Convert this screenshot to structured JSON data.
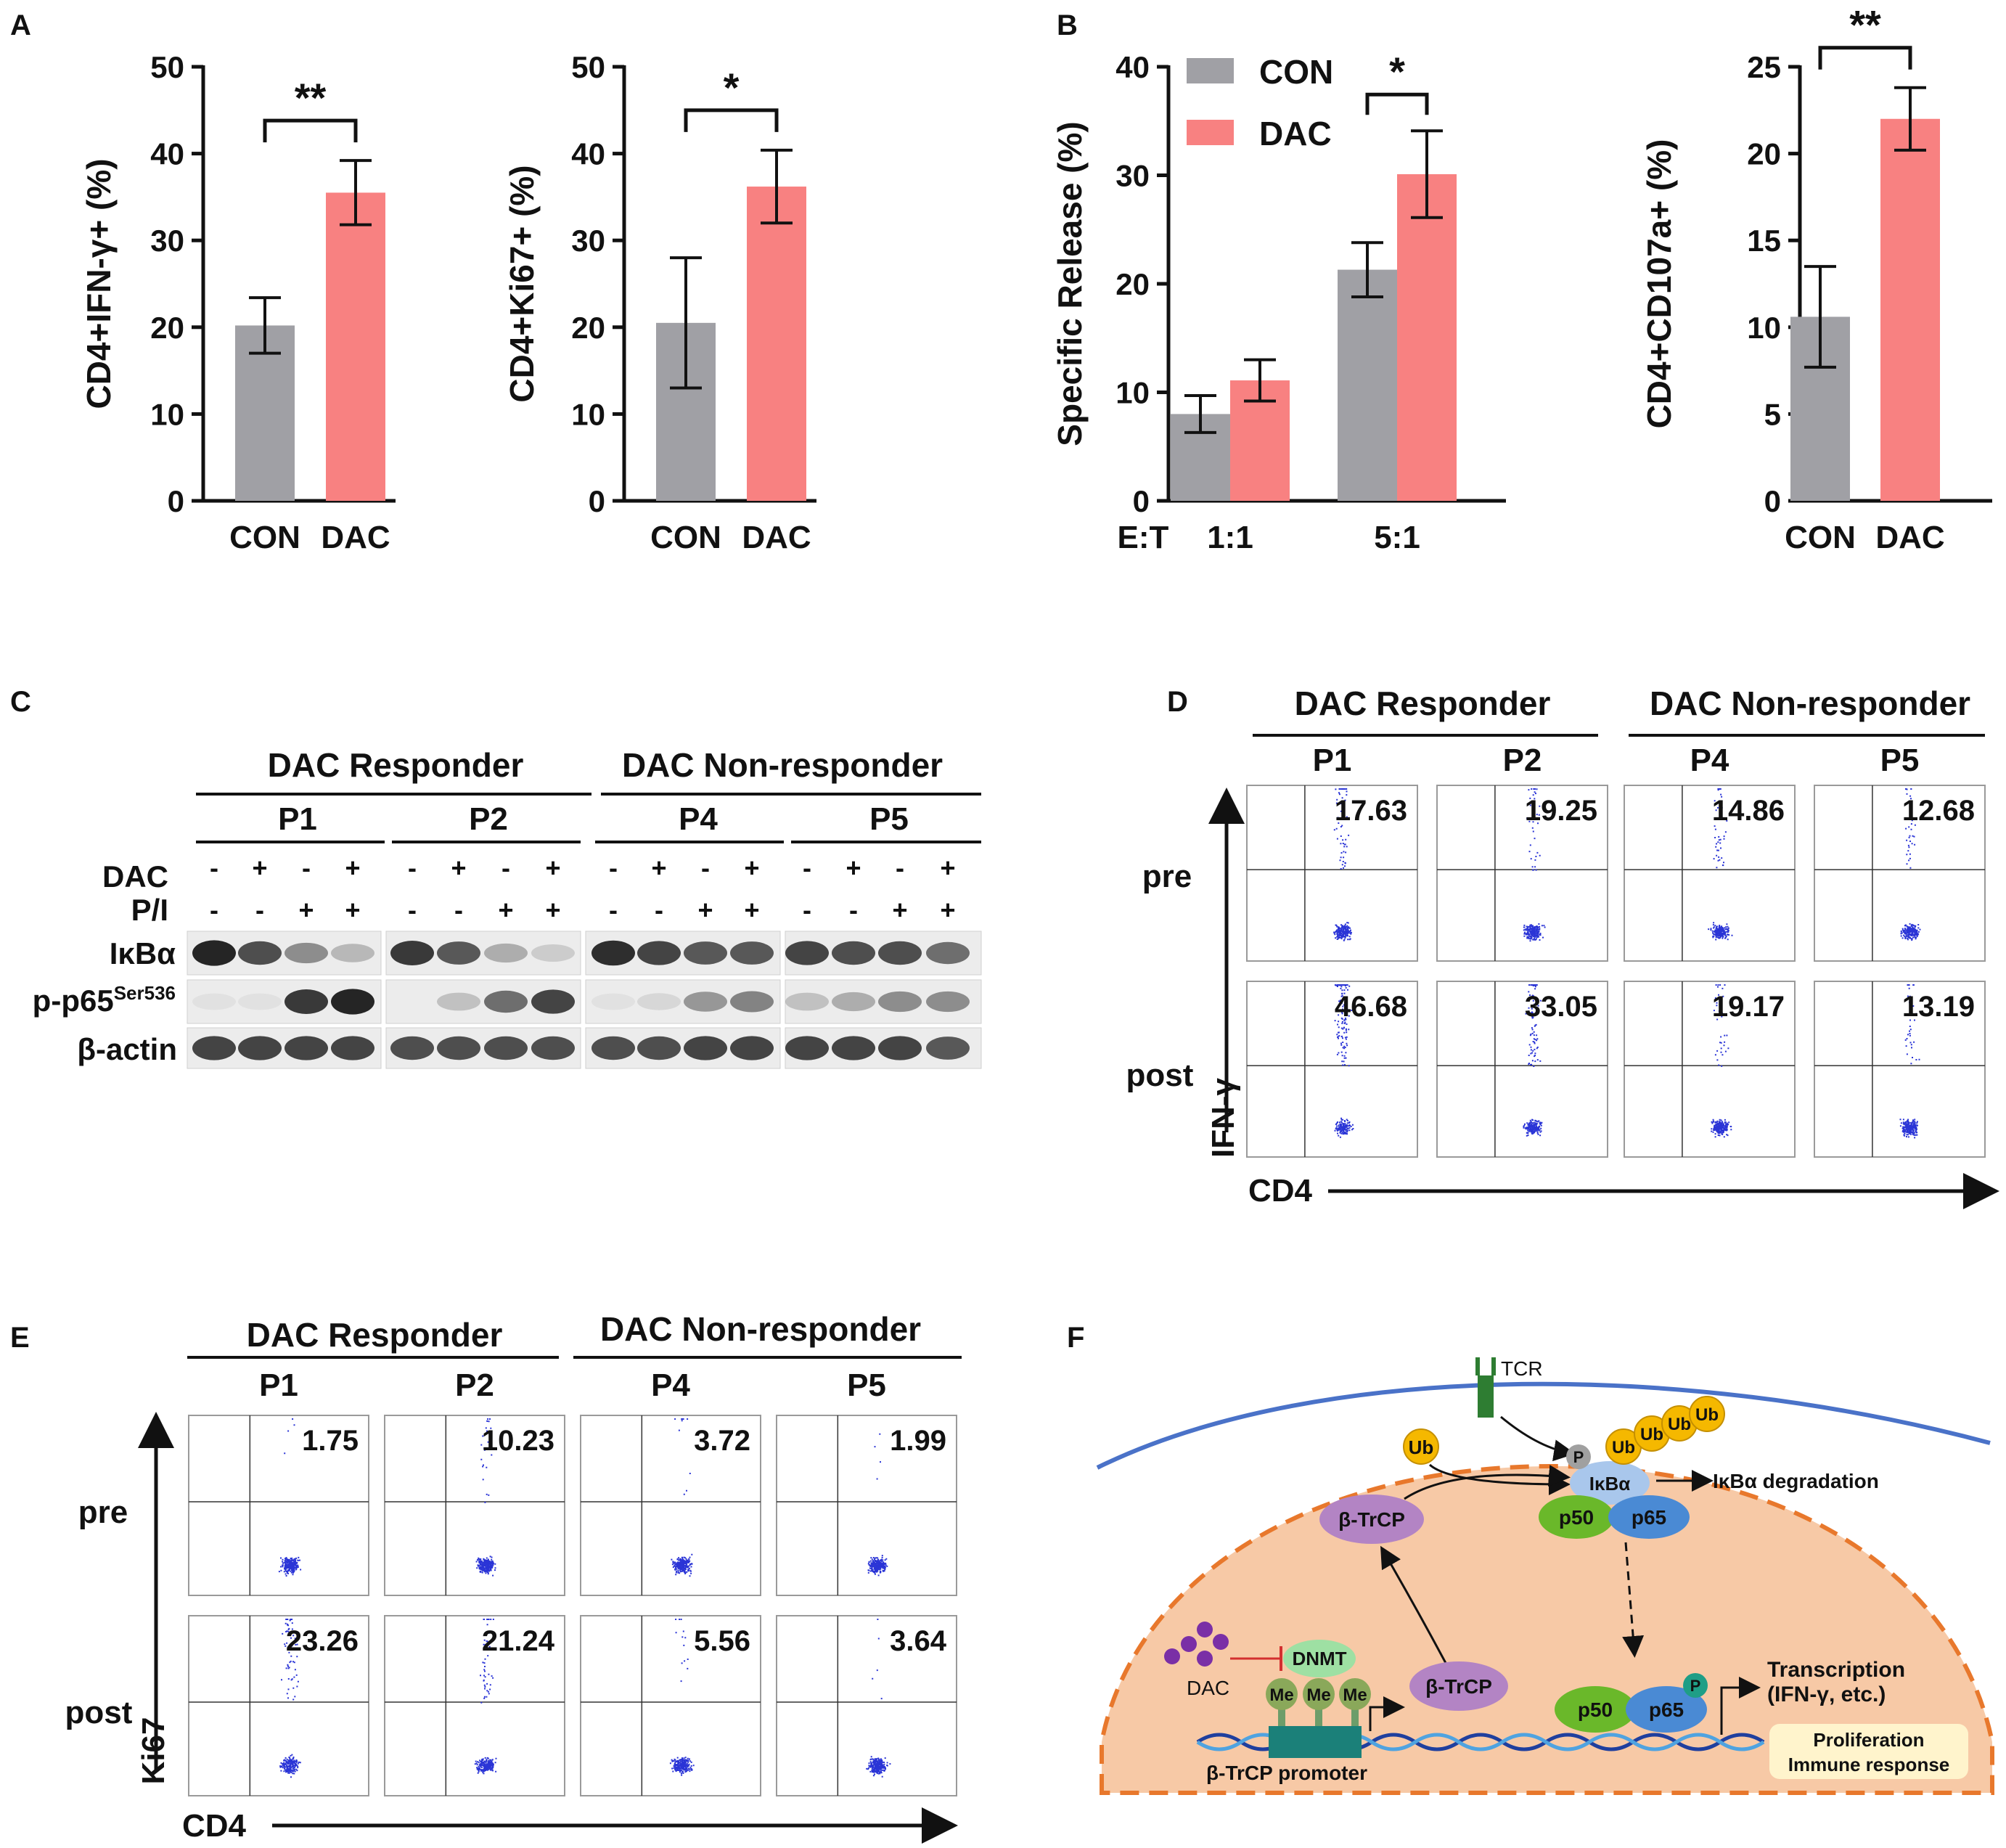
{
  "colors": {
    "con": "#a0a0a5",
    "dac": "#f88181",
    "dot": "#2a34d6",
    "membrane": "#4a72c8",
    "nucleus": "#f7c9a6",
    "nucleus_border": "#e8782c"
  },
  "panel_labels": {
    "a": "A",
    "b": "B",
    "c": "C",
    "d": "D",
    "e": "E",
    "f": "F"
  },
  "chart_data": [
    {
      "type": "bar",
      "id": "A1",
      "categories": [
        "CON",
        "DAC"
      ],
      "values": [
        20.2,
        35.5
      ],
      "errors": [
        3.2,
        3.7
      ],
      "ylabel": "CD4+IFN-γ+ (%)",
      "ylim": [
        0,
        50
      ],
      "yticks": [
        "0",
        "10",
        "20",
        "30",
        "40",
        "50"
      ],
      "sig": "**"
    },
    {
      "type": "bar",
      "id": "A2",
      "categories": [
        "CON",
        "DAC"
      ],
      "values": [
        20.5,
        36.2
      ],
      "errors": [
        7.5,
        4.2
      ],
      "ylabel": "CD4+Ki67+ (%)",
      "ylim": [
        0,
        50
      ],
      "yticks": [
        "0",
        "10",
        "20",
        "30",
        "40",
        "50"
      ],
      "sig": "*"
    },
    {
      "type": "bar",
      "id": "B1",
      "categories": [
        "1:1",
        "5:1"
      ],
      "xprefix": "E:T",
      "series": [
        {
          "name": "CON",
          "values": [
            8.0,
            21.3
          ],
          "errors": [
            1.7,
            2.5
          ]
        },
        {
          "name": "DAC",
          "values": [
            11.1,
            30.1
          ],
          "errors": [
            1.9,
            4.0
          ]
        }
      ],
      "ylabel": "Specific Release (%)",
      "ylim": [
        0,
        40
      ],
      "yticks": [
        "0",
        "10",
        "20",
        "30",
        "40"
      ],
      "sig": "*",
      "legend": [
        "CON",
        "DAC"
      ]
    },
    {
      "type": "bar",
      "id": "B2",
      "categories": [
        "CON",
        "DAC"
      ],
      "values": [
        10.6,
        22.0
      ],
      "errors": [
        2.9,
        1.8
      ],
      "ylabel": "CD4+CD107a+ (%)",
      "ylim": [
        0,
        25
      ],
      "yticks": [
        "0",
        "5",
        "10",
        "15",
        "20",
        "25"
      ],
      "sig": "**"
    }
  ],
  "panel_c": {
    "group_responder": "DAC Responder",
    "group_nonresponder": "DAC Non-responder",
    "patients": [
      "P1",
      "P2",
      "P4",
      "P5"
    ],
    "row_dac": "DAC",
    "row_pi": "P/I",
    "dac_signs": [
      "-",
      "+",
      "-",
      "+"
    ],
    "pi_signs": [
      "-",
      "-",
      "+",
      "+"
    ],
    "blot_ikba": "IκBα",
    "blot_pp65": "p-p65",
    "blot_pp65_sup": "Ser536",
    "blot_actin": "β-actin"
  },
  "panel_d": {
    "group_responder": "DAC Responder",
    "group_nonresponder": "DAC Non-responder",
    "patients": [
      "P1",
      "P2",
      "P4",
      "P5"
    ],
    "row_labels": [
      "pre",
      "post"
    ],
    "values_pre": [
      "17.63",
      "19.25",
      "14.86",
      "12.68"
    ],
    "values_post": [
      "46.68",
      "33.05",
      "19.17",
      "13.19"
    ],
    "y_axis": "IFN-γ",
    "x_axis": "CD4"
  },
  "panel_e": {
    "group_responder": "DAC Responder",
    "group_nonresponder": "DAC Non-responder",
    "patients": [
      "P1",
      "P2",
      "P4",
      "P5"
    ],
    "row_labels": [
      "pre",
      "post"
    ],
    "values_pre": [
      "1.75",
      "10.23",
      "3.72",
      "1.99"
    ],
    "values_post": [
      "23.26",
      "21.24",
      "5.56",
      "3.64"
    ],
    "y_axis": "Ki67",
    "x_axis": "CD4"
  },
  "panel_f": {
    "tcr": "TCR",
    "p": "P",
    "ub": "Ub",
    "ikba": "IκBα",
    "p50": "p50",
    "p65": "p65",
    "degradation": "IκBα degradation",
    "btrcp": "β-TrCP",
    "dac": "DAC",
    "dnmt": "DNMT",
    "me": "Me",
    "promoter": "β-TrCP promoter",
    "transcription_1": "Transcription",
    "transcription_2": "(IFN-γ, etc.)",
    "outcome_1": "Proliferation",
    "outcome_2": "Immune response"
  }
}
